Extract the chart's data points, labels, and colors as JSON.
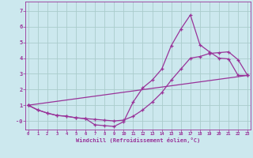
{
  "xlabel": "Windchill (Refroidissement éolien,°C)",
  "background_color": "#cce8ee",
  "grid_color": "#aacccc",
  "line_color": "#993399",
  "xlim": [
    -0.3,
    23.3
  ],
  "ylim": [
    -0.55,
    7.6
  ],
  "xticks": [
    0,
    1,
    2,
    3,
    4,
    5,
    6,
    7,
    8,
    9,
    10,
    11,
    12,
    13,
    14,
    15,
    16,
    17,
    18,
    19,
    20,
    21,
    22,
    23
  ],
  "yticks": [
    0,
    1,
    2,
    3,
    4,
    5,
    6,
    7
  ],
  "ytick_labels": [
    "-0",
    "1",
    "2",
    "3",
    "4",
    "5",
    "6",
    "7"
  ],
  "curve1_x": [
    0,
    1,
    2,
    3,
    4,
    5,
    6,
    7,
    8,
    9,
    10,
    11,
    12,
    13,
    14,
    15,
    16,
    17,
    18,
    19,
    20,
    21,
    22,
    23
  ],
  "curve1_y": [
    1.0,
    0.7,
    0.5,
    0.35,
    0.3,
    0.2,
    0.15,
    -0.25,
    -0.3,
    -0.35,
    -0.05,
    1.2,
    2.1,
    2.6,
    3.3,
    4.8,
    5.85,
    6.75,
    4.85,
    4.4,
    4.0,
    3.95,
    2.9,
    2.9
  ],
  "curve2_x": [
    0,
    1,
    2,
    3,
    4,
    5,
    6,
    7,
    8,
    9,
    10,
    11,
    12,
    13,
    14,
    15,
    16,
    17,
    18,
    19,
    20,
    21,
    22,
    23
  ],
  "curve2_y": [
    1.0,
    0.7,
    0.5,
    0.35,
    0.3,
    0.2,
    0.15,
    0.1,
    0.05,
    0.0,
    0.05,
    0.3,
    0.7,
    1.2,
    1.8,
    2.6,
    3.3,
    4.0,
    4.1,
    4.3,
    4.35,
    4.4,
    3.9,
    2.9
  ],
  "curve3_x": [
    0,
    23
  ],
  "curve3_y": [
    1.0,
    2.9
  ]
}
